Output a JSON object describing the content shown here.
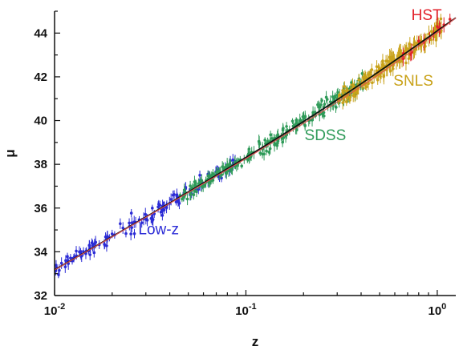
{
  "chart_data": {
    "type": "scatter",
    "title": "",
    "xlabel": "z",
    "ylabel": "μ",
    "xscale": "log",
    "xlim": [
      0.01,
      1.25
    ],
    "ylim": [
      32,
      45
    ],
    "grid": false,
    "legend": "none",
    "x_ticks": [
      {
        "value": 0.01,
        "base": "10",
        "exp": "-2"
      },
      {
        "value": 0.1,
        "base": "10",
        "exp": "-1"
      },
      {
        "value": 1,
        "base": "10",
        "exp": "0"
      }
    ],
    "y_ticks": [
      "32",
      "34",
      "36",
      "38",
      "40",
      "42",
      "44"
    ],
    "groups": [
      {
        "name": "Low-z",
        "color": "#2b2bd6",
        "z_range": [
          0.01,
          0.09
        ],
        "count": 140
      },
      {
        "name": "SDSS",
        "color": "#2e9a58",
        "z_range": [
          0.045,
          0.42
        ],
        "count": 230
      },
      {
        "name": "SNLS",
        "color": "#c9a21a",
        "z_range": [
          0.3,
          1.05
        ],
        "count": 170
      },
      {
        "name": "HST",
        "color": "#e2202a",
        "z_range": [
          0.65,
          1.2
        ],
        "count": 14
      }
    ],
    "group_label_positions": [
      {
        "name": "Low-z",
        "x": 0.035,
        "y": 34.8
      },
      {
        "name": "SDSS",
        "x": 0.26,
        "y": 39.1
      },
      {
        "name": "SNLS",
        "x": 0.75,
        "y": 41.6
      },
      {
        "name": "HST",
        "x": 0.88,
        "y": 44.6
      }
    ],
    "model_curves": [
      {
        "label": "",
        "color": "#111111",
        "note": "best-fit cosmology (accelerating)"
      },
      {
        "label": "",
        "color": "#e05050",
        "note": "non-accelerating reference"
      }
    ]
  }
}
